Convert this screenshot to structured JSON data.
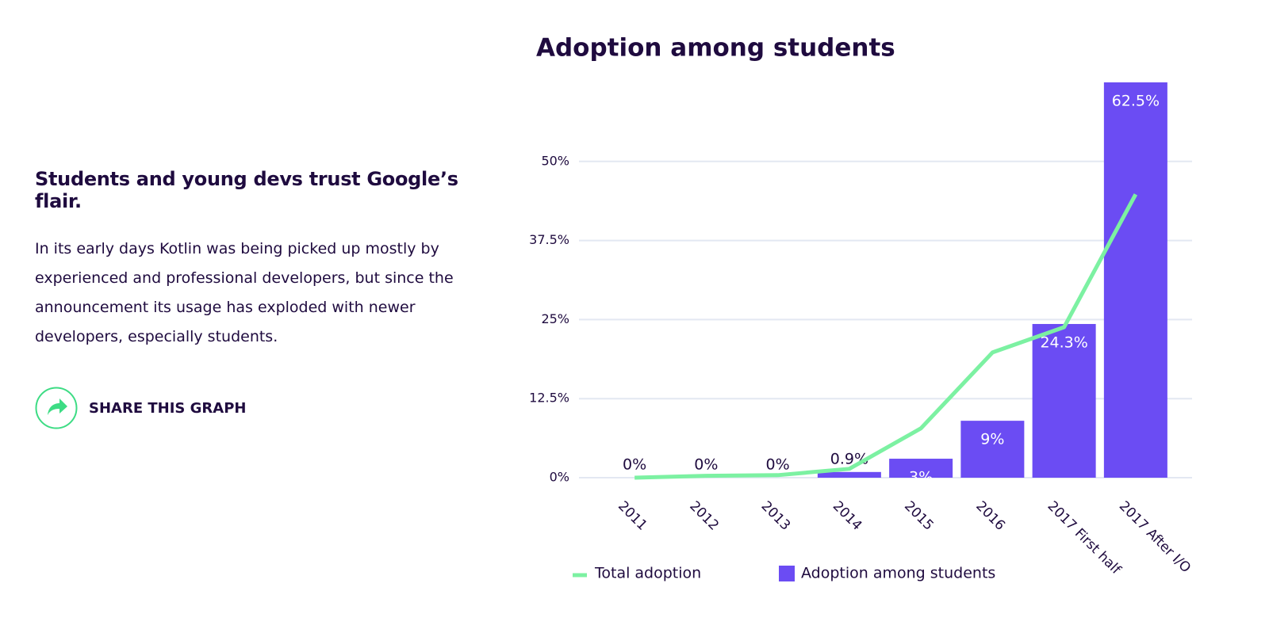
{
  "article": {
    "heading": "Students and young devs trust Google’s flair.",
    "body": "In its early days Kotlin was being picked up mostly by experienced and professional developers, but since the announcement its usage has exploded with newer developers, especially students.",
    "share": "SHARE THIS GRAPH"
  },
  "chart_data": {
    "type": "bar",
    "title": "Adoption among students",
    "categories": [
      "2011",
      "2012",
      "2013",
      "2014",
      "2015",
      "2016",
      "2017 First half",
      "2017 After I/O"
    ],
    "series": [
      {
        "name": "Total adoption",
        "type": "line",
        "color": "#7cf1a2",
        "values": [
          0,
          0.3,
          0.4,
          1.4,
          7.8,
          19.8,
          23.8,
          44.8
        ]
      },
      {
        "name": "Adoption among students",
        "type": "bar",
        "color": "#6b4cf3",
        "values": [
          0,
          0,
          0,
          0.9,
          3,
          9,
          24.3,
          62.5
        ],
        "value_labels": [
          "0%",
          "0%",
          "0%",
          "0.9%",
          "3%",
          "9%",
          "24.3%",
          "62.5%"
        ]
      }
    ],
    "ylim": [
      0,
      65
    ],
    "yticks": [
      {
        "value": 0,
        "label": "0%"
      },
      {
        "value": 12.5,
        "label": "12.5%"
      },
      {
        "value": 25,
        "label": "25%"
      },
      {
        "value": 37.5,
        "label": "37.5%"
      },
      {
        "value": 50,
        "label": "50%"
      }
    ],
    "grid": true
  }
}
